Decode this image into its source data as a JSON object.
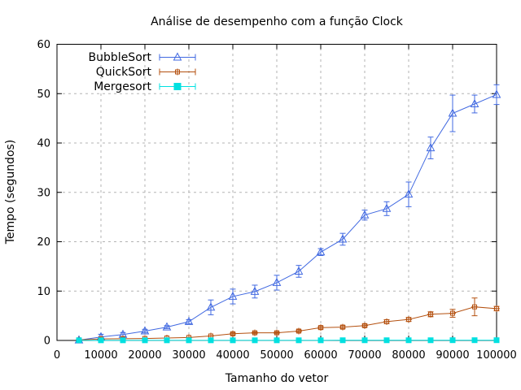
{
  "chart_data": {
    "type": "line",
    "title": "Análise de desempenho com a função Clock",
    "xlabel": "Tamanho do vetor",
    "ylabel": "Tempo (segundos)",
    "xlim": [
      0,
      100000
    ],
    "ylim": [
      0,
      60
    ],
    "x_ticks": [
      0,
      10000,
      20000,
      30000,
      40000,
      50000,
      60000,
      70000,
      80000,
      90000,
      100000
    ],
    "y_ticks": [
      0,
      10,
      20,
      30,
      40,
      50,
      60
    ],
    "grid": true,
    "grid_style": "dashed",
    "legend_position": "top-left",
    "error_bars": true,
    "x": [
      5000,
      10000,
      15000,
      20000,
      25000,
      30000,
      35000,
      40000,
      45000,
      50000,
      55000,
      60000,
      65000,
      70000,
      75000,
      80000,
      85000,
      90000,
      95000,
      100000
    ],
    "series": [
      {
        "name": "BubbleSort",
        "color": "#4169E1",
        "marker": "triangle-open",
        "values": [
          0.07,
          0.7,
          1.2,
          1.9,
          2.7,
          3.8,
          6.7,
          8.9,
          9.9,
          11.7,
          14.0,
          17.9,
          20.5,
          25.4,
          26.7,
          29.6,
          39.0,
          46.0,
          47.9,
          49.8
        ],
        "errors": [
          0.05,
          0.55,
          0.4,
          0.35,
          0.3,
          0.4,
          1.5,
          1.5,
          1.3,
          1.5,
          1.2,
          0.7,
          1.2,
          1.0,
          1.4,
          2.5,
          2.2,
          3.7,
          1.8,
          2.0
        ]
      },
      {
        "name": "QuickSort",
        "color": "#B4500F",
        "marker": "square-plus-open",
        "values": [
          0.1,
          0.3,
          0.35,
          0.4,
          0.5,
          0.6,
          0.9,
          1.35,
          1.55,
          1.55,
          1.9,
          2.6,
          2.7,
          3.0,
          3.8,
          4.25,
          5.3,
          5.5,
          6.8,
          6.45
        ],
        "errors": [
          0.03,
          0.05,
          0.08,
          0.08,
          0.12,
          0.12,
          0.15,
          0.25,
          0.2,
          0.2,
          0.25,
          0.3,
          0.3,
          0.3,
          0.4,
          0.4,
          0.5,
          0.8,
          1.8,
          0.45
        ]
      },
      {
        "name": "Mergesort",
        "color": "#00E0E0",
        "marker": "square-filled",
        "values": [
          0.03,
          0.03,
          0.03,
          0.03,
          0.03,
          0.03,
          0.03,
          0.03,
          0.03,
          0.03,
          0.03,
          0.03,
          0.04,
          0.04,
          0.04,
          0.04,
          0.04,
          0.05,
          0.05,
          0.05
        ],
        "errors": [
          0.02,
          0.02,
          0.02,
          0.02,
          0.02,
          0.02,
          0.02,
          0.02,
          0.02,
          0.02,
          0.02,
          0.02,
          0.02,
          0.02,
          0.02,
          0.02,
          0.02,
          0.02,
          0.02,
          0.02
        ]
      }
    ]
  },
  "colors": {
    "background": "#FFFFFF",
    "grid": "#B3B3B3",
    "axis": "#000000",
    "text": "#000000"
  }
}
